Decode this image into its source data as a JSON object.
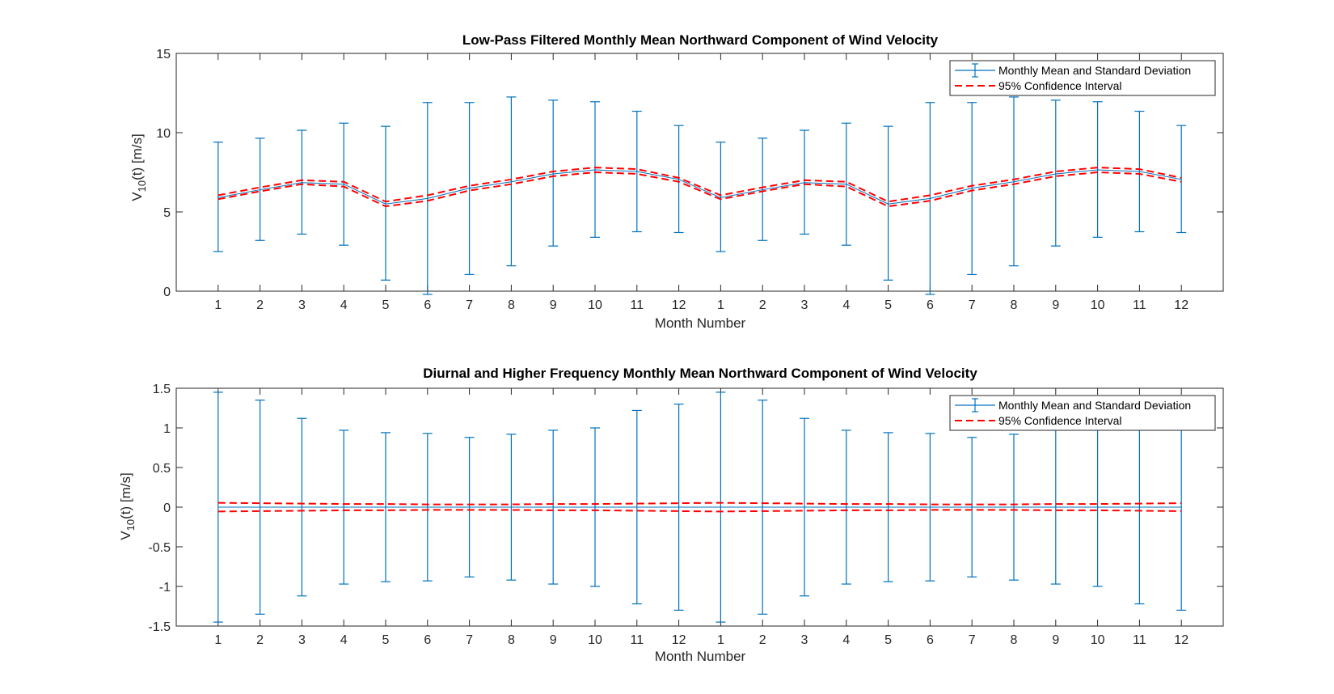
{
  "chart_data": [
    {
      "type": "line",
      "title": "Low-Pass Filtered Monthly Mean Northward Component of Wind Velocity",
      "xlabel": "Month Number",
      "ylabel": "V10(t) [m/s]",
      "ylabel_main": "V",
      "ylabel_sub": "10",
      "ylabel_rest": "(t) [m/s]",
      "xlim": [
        0,
        25
      ],
      "ylim": [
        0,
        15
      ],
      "yticks": [
        0,
        5,
        10,
        15
      ],
      "ytick_labels": [
        "0",
        "5",
        "10",
        "15"
      ],
      "x": [
        1,
        2,
        3,
        4,
        5,
        6,
        7,
        8,
        9,
        10,
        11,
        12,
        13,
        14,
        15,
        16,
        17,
        18,
        19,
        20,
        21,
        22,
        23,
        24
      ],
      "xtick_labels": [
        "1",
        "2",
        "3",
        "4",
        "5",
        "6",
        "7",
        "8",
        "9",
        "10",
        "11",
        "12",
        "1",
        "2",
        "3",
        "4",
        "5",
        "6",
        "7",
        "8",
        "9",
        "10",
        "11",
        "12"
      ],
      "legend_location": "top-right",
      "grid": false,
      "colors": {
        "errorbar": "#0072BD",
        "ci": "#FF0000",
        "axis": "#262626"
      },
      "series": [
        {
          "name": "Monthly Mean and Standard Deviation",
          "style": "errorbar",
          "values": [
            5.9,
            6.4,
            6.85,
            6.75,
            5.5,
            5.85,
            6.5,
            6.9,
            7.4,
            7.65,
            7.55,
            7.05,
            5.9,
            6.4,
            6.85,
            6.75,
            5.5,
            5.85,
            6.5,
            6.9,
            7.4,
            7.65,
            7.55,
            7.05
          ],
          "lower": [
            2.5,
            3.2,
            3.6,
            2.9,
            0.7,
            -0.2,
            1.05,
            1.6,
            2.85,
            3.4,
            3.75,
            3.7,
            2.5,
            3.2,
            3.6,
            2.9,
            0.7,
            -0.2,
            1.05,
            1.6,
            2.85,
            3.4,
            3.75,
            3.7
          ],
          "upper": [
            9.4,
            9.65,
            10.15,
            10.6,
            10.4,
            11.9,
            11.9,
            12.25,
            12.05,
            11.95,
            11.35,
            10.45,
            9.4,
            9.65,
            10.15,
            10.6,
            10.4,
            11.9,
            11.9,
            12.25,
            12.05,
            11.95,
            11.35,
            10.45
          ]
        },
        {
          "name": "95% Confidence Interval",
          "style": "dashed",
          "upper_values": [
            6.05,
            6.55,
            7.0,
            6.9,
            5.65,
            6.05,
            6.65,
            7.05,
            7.55,
            7.8,
            7.7,
            7.15,
            6.05,
            6.55,
            7.0,
            6.9,
            5.65,
            6.05,
            6.65,
            7.05,
            7.55,
            7.8,
            7.7,
            7.15
          ],
          "lower_values": [
            5.8,
            6.3,
            6.75,
            6.6,
            5.35,
            5.7,
            6.35,
            6.75,
            7.25,
            7.5,
            7.4,
            6.9,
            5.8,
            6.3,
            6.75,
            6.6,
            5.35,
            5.7,
            6.35,
            6.75,
            7.25,
            7.5,
            7.4,
            6.9
          ]
        }
      ]
    },
    {
      "type": "line",
      "title": "Diurnal and Higher Frequency Monthly Mean Northward Component of Wind Velocity",
      "xlabel": "Month Number",
      "ylabel": "V10(t) [m/s]",
      "ylabel_main": "V",
      "ylabel_sub": "10",
      "ylabel_rest": "(t) [m/s]",
      "xlim": [
        0,
        25
      ],
      "ylim": [
        -1.5,
        1.5
      ],
      "yticks": [
        -1.5,
        -1,
        -0.5,
        0,
        0.5,
        1,
        1.5
      ],
      "ytick_labels": [
        "-1.5",
        "-1",
        "-0.5",
        "0",
        "0.5",
        "1",
        "1.5"
      ],
      "x": [
        1,
        2,
        3,
        4,
        5,
        6,
        7,
        8,
        9,
        10,
        11,
        12,
        13,
        14,
        15,
        16,
        17,
        18,
        19,
        20,
        21,
        22,
        23,
        24
      ],
      "xtick_labels": [
        "1",
        "2",
        "3",
        "4",
        "5",
        "6",
        "7",
        "8",
        "9",
        "10",
        "11",
        "12",
        "1",
        "2",
        "3",
        "4",
        "5",
        "6",
        "7",
        "8",
        "9",
        "10",
        "11",
        "12"
      ],
      "legend_location": "top-right",
      "grid": false,
      "colors": {
        "errorbar": "#0072BD",
        "ci": "#FF0000",
        "axis": "#262626"
      },
      "series": [
        {
          "name": "Monthly Mean and Standard Deviation",
          "style": "errorbar",
          "values": [
            0,
            0,
            0,
            0,
            0,
            0,
            0,
            0,
            0,
            0,
            0,
            0,
            0,
            0,
            0,
            0,
            0,
            0,
            0,
            0,
            0,
            0,
            0,
            0
          ],
          "std": [
            1.45,
            1.35,
            1.12,
            0.97,
            0.94,
            0.93,
            0.88,
            0.92,
            0.97,
            1.0,
            1.22,
            1.3,
            1.45,
            1.35,
            1.12,
            0.97,
            0.94,
            0.93,
            0.88,
            0.92,
            0.97,
            1.0,
            1.22,
            1.3
          ]
        },
        {
          "name": "95% Confidence Interval",
          "style": "dashed",
          "upper_values": [
            0.055,
            0.05,
            0.045,
            0.04,
            0.04,
            0.035,
            0.035,
            0.035,
            0.04,
            0.04,
            0.045,
            0.05,
            0.055,
            0.05,
            0.045,
            0.04,
            0.04,
            0.035,
            0.035,
            0.035,
            0.04,
            0.04,
            0.045,
            0.05
          ],
          "lower_values": [
            -0.055,
            -0.05,
            -0.045,
            -0.04,
            -0.04,
            -0.035,
            -0.035,
            -0.035,
            -0.04,
            -0.04,
            -0.045,
            -0.05,
            -0.055,
            -0.05,
            -0.045,
            -0.04,
            -0.04,
            -0.035,
            -0.035,
            -0.035,
            -0.04,
            -0.04,
            -0.045,
            -0.05
          ]
        }
      ]
    }
  ]
}
